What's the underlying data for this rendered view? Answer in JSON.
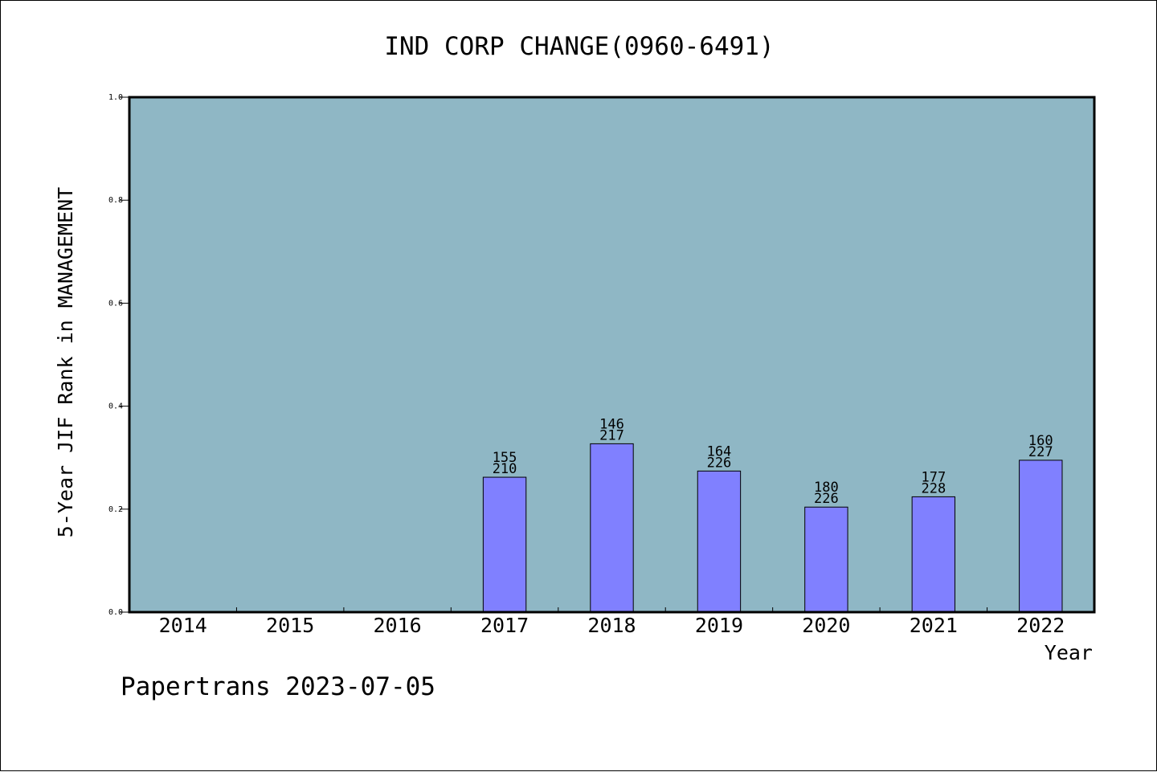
{
  "chart_data": {
    "type": "bar",
    "title": "IND CORP CHANGE(0960-6491)",
    "xlabel": "Year",
    "ylabel": "5-Year JIF Rank in MANAGEMENT",
    "ylim": [
      0,
      1.0
    ],
    "yticks": [
      "0.0",
      "0.2",
      "0.4",
      "0.6",
      "0.8",
      "1.0"
    ],
    "categories": [
      "2014",
      "2015",
      "2016",
      "2017",
      "2018",
      "2019",
      "2020",
      "2021",
      "2022"
    ],
    "values": [
      null,
      null,
      null,
      0.262,
      0.327,
      0.274,
      0.204,
      0.224,
      0.295
    ],
    "rank": [
      null,
      null,
      null,
      "155",
      "146",
      "164",
      "180",
      "177",
      "160"
    ],
    "total": [
      null,
      null,
      null,
      "210",
      "217",
      "226",
      "226",
      "228",
      "227"
    ],
    "grid": false,
    "colors": {
      "plot_bg": "#8fb7c5",
      "bar": "#8080ff",
      "axis": "#000000"
    }
  },
  "footer": "Papertrans 2023-07-05"
}
